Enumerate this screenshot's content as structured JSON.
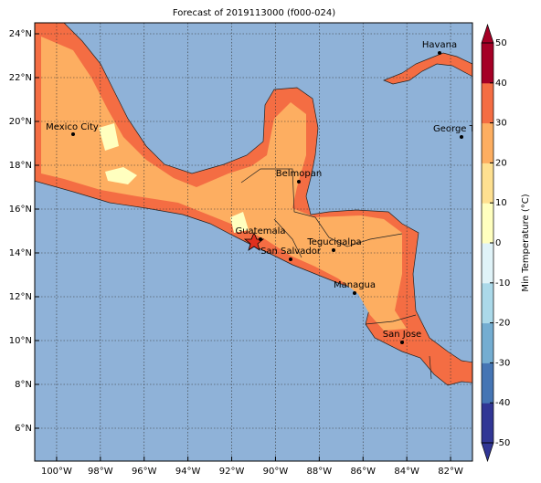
{
  "title": "Forecast of 2019113000 (f000-024)",
  "map": {
    "lonlim": [
      -101,
      -81
    ],
    "latlim": [
      4.5,
      24.5
    ],
    "lonticks": [
      {
        "value": -100,
        "label": "100°W"
      },
      {
        "value": -98,
        "label": "98°W"
      },
      {
        "value": -96,
        "label": "96°W"
      },
      {
        "value": -94,
        "label": "94°W"
      },
      {
        "value": -92,
        "label": "92°W"
      },
      {
        "value": -90,
        "label": "90°W"
      },
      {
        "value": -88,
        "label": "88°W"
      },
      {
        "value": -86,
        "label": "86°W"
      },
      {
        "value": -84,
        "label": "84°W"
      },
      {
        "value": -82,
        "label": "82°W"
      }
    ],
    "latticks": [
      {
        "value": 6,
        "label": "6°N"
      },
      {
        "value": 8,
        "label": "8°N"
      },
      {
        "value": 10,
        "label": "10°N"
      },
      {
        "value": 12,
        "label": "12°N"
      },
      {
        "value": 14,
        "label": "14°N"
      },
      {
        "value": 16,
        "label": "16°N"
      },
      {
        "value": 18,
        "label": "18°N"
      },
      {
        "value": 20,
        "label": "20°N"
      },
      {
        "value": 22,
        "label": "22°N"
      },
      {
        "value": 24,
        "label": "24°N"
      }
    ],
    "cities": [
      "Mexico City",
      "Havana",
      "George Town",
      "Belmopan",
      "Guatemala",
      "San Salvador",
      "Tegucigalpa",
      "Managua",
      "San Jose"
    ]
  },
  "colorbar": {
    "label": "Min Temperature (°C)",
    "lim": [
      -50,
      50
    ],
    "ticks": [
      -50,
      -40,
      -30,
      -20,
      -10,
      0,
      10,
      20,
      30,
      40,
      50
    ],
    "colors": [
      "#313695",
      "#4575b4",
      "#74add1",
      "#abd9e9",
      "#e0f3f8",
      "#ffffbf",
      "#fee090",
      "#fdae61",
      "#f46d43",
      "#a50026"
    ]
  }
}
